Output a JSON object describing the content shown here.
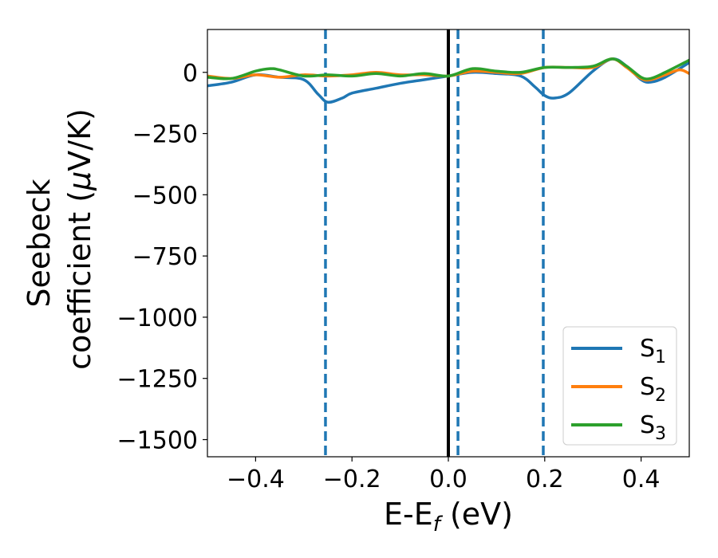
{
  "chart_data": {
    "type": "line",
    "xlabel": "E-E",
    "xlabel_sub": "f",
    "xlabel_units": " (eV)",
    "ylabel_line1": "Seebeck",
    "ylabel_line2": "coefficient  (",
    "ylabel_mu": "μ",
    "ylabel_units": "V/K)",
    "xlim": [
      -0.5,
      0.5
    ],
    "ylim": [
      -1570,
      175
    ],
    "x_ticks": [
      -0.4,
      -0.2,
      0.0,
      0.2,
      0.4
    ],
    "x_tick_labels": [
      "−0.4",
      "−0.2",
      "0.0",
      "0.2",
      "0.4"
    ],
    "y_ticks": [
      0,
      -250,
      -500,
      -750,
      -1000,
      -1250,
      -1500
    ],
    "y_tick_labels": [
      "0",
      "−250",
      "−500",
      "−750",
      "−1000",
      "−1250",
      "−1500"
    ],
    "vlines": [
      {
        "x": 0.0,
        "style": "solid",
        "color": "#000000"
      },
      {
        "x": -0.255,
        "style": "dashed",
        "color": "#1f77b4"
      },
      {
        "x": 0.02,
        "style": "dashed",
        "color": "#1f77b4"
      },
      {
        "x": 0.197,
        "style": "dashed",
        "color": "#1f77b4"
      }
    ],
    "legend_position": "lower-right",
    "series": [
      {
        "name": "S",
        "sub": "1",
        "color": "#1f77b4",
        "x": [
          -0.5,
          -0.45,
          -0.4,
          -0.35,
          -0.3,
          -0.27,
          -0.25,
          -0.22,
          -0.2,
          -0.15,
          -0.1,
          -0.05,
          0.0,
          0.05,
          0.1,
          0.15,
          0.18,
          0.2,
          0.22,
          0.25,
          0.3,
          0.34,
          0.37,
          0.4,
          0.42,
          0.45,
          0.5
        ],
        "values": [
          -55,
          -40,
          -10,
          -20,
          -30,
          -90,
          -122,
          -105,
          -85,
          -65,
          -45,
          -30,
          -15,
          0,
          -5,
          -15,
          -60,
          -95,
          -105,
          -85,
          5,
          55,
          25,
          -30,
          -40,
          -20,
          40
        ]
      },
      {
        "name": "S",
        "sub": "2",
        "color": "#ff7f0e",
        "x": [
          -0.5,
          -0.45,
          -0.4,
          -0.35,
          -0.3,
          -0.25,
          -0.2,
          -0.15,
          -0.1,
          -0.05,
          0.0,
          0.05,
          0.1,
          0.15,
          0.2,
          0.25,
          0.3,
          0.34,
          0.37,
          0.4,
          0.42,
          0.45,
          0.48,
          0.5
        ],
        "values": [
          -15,
          -25,
          -10,
          -20,
          -10,
          -15,
          -10,
          0,
          -10,
          -10,
          -15,
          5,
          0,
          -5,
          20,
          20,
          20,
          55,
          20,
          -25,
          -30,
          -10,
          10,
          -5
        ]
      },
      {
        "name": "S",
        "sub": "3",
        "color": "#2ca02c",
        "x": [
          -0.5,
          -0.45,
          -0.4,
          -0.37,
          -0.35,
          -0.3,
          -0.25,
          -0.2,
          -0.15,
          -0.1,
          -0.05,
          0.0,
          0.05,
          0.1,
          0.15,
          0.2,
          0.25,
          0.3,
          0.34,
          0.37,
          0.4,
          0.42,
          0.45,
          0.5
        ],
        "values": [
          -20,
          -25,
          5,
          15,
          10,
          -15,
          -10,
          -15,
          -5,
          -15,
          -5,
          -15,
          15,
          5,
          0,
          20,
          20,
          25,
          55,
          25,
          -20,
          -25,
          0,
          50
        ]
      }
    ]
  }
}
